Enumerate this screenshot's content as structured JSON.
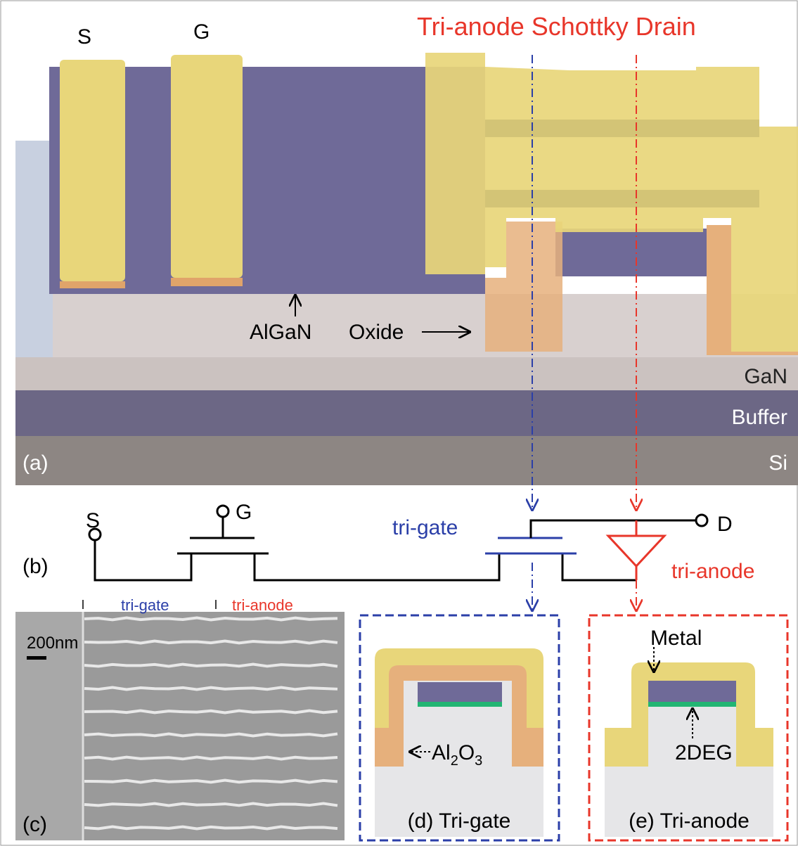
{
  "panel_a": {
    "label": "(a)",
    "title": "Tri-anode Schottky Drain",
    "source": "S",
    "gate": "G",
    "algan": "AlGaN",
    "oxide": "Oxide",
    "layers": [
      "GaN",
      "Buffer",
      "Si"
    ]
  },
  "panel_b": {
    "label": "(b)",
    "source": "S",
    "gate": "G",
    "drain": "D",
    "tri_gate": "tri-gate",
    "tri_anode": "tri-anode"
  },
  "panel_c": {
    "label": "(c)",
    "scale_bar": "200nm",
    "tri_gate": "tri-gate",
    "tri_anode": "tri-anode"
  },
  "panel_d": {
    "caption": "(d) Tri-gate",
    "oxide_label": {
      "base1": "Al",
      "sub1": "2",
      "base2": "O",
      "sub2": "3"
    }
  },
  "panel_e": {
    "caption": "(e) Tri-anode",
    "metal": "Metal",
    "channel": "2DEG"
  }
}
